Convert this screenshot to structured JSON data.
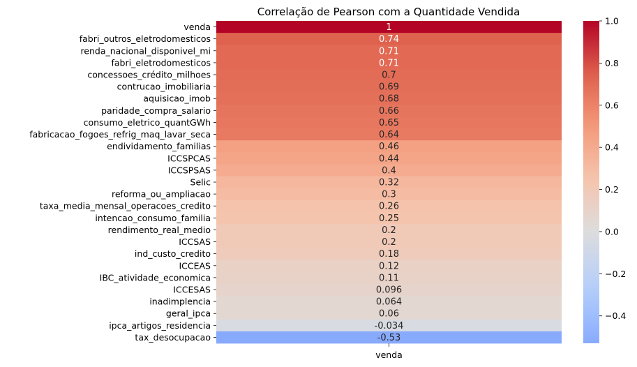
{
  "chart_data": {
    "type": "heatmap",
    "title": "Correlação de Pearson com a Quantidade Vendida",
    "x_categories": [
      "venda"
    ],
    "rows": [
      {
        "label": "venda",
        "value": 1,
        "text": "1"
      },
      {
        "label": "fabri_outros_eletrodomesticos",
        "value": 0.74,
        "text": "0.74"
      },
      {
        "label": "renda_nacional_disponivel_mi",
        "value": 0.71,
        "text": "0.71"
      },
      {
        "label": "fabri_eletrodomesticos",
        "value": 0.71,
        "text": "0.71"
      },
      {
        "label": "concessoes_crédito_milhoes",
        "value": 0.7,
        "text": "0.7"
      },
      {
        "label": "contrucao_imobiliaria",
        "value": 0.69,
        "text": "0.69"
      },
      {
        "label": "aquisicao_imob",
        "value": 0.68,
        "text": "0.68"
      },
      {
        "label": "paridade_compra_salario",
        "value": 0.66,
        "text": "0.66"
      },
      {
        "label": "consumo_eletrico_quantGWh",
        "value": 0.65,
        "text": "0.65"
      },
      {
        "label": "fabricacao_fogoes_refrig_maq_lavar_seca",
        "value": 0.64,
        "text": "0.64"
      },
      {
        "label": "endividamento_familias",
        "value": 0.46,
        "text": "0.46"
      },
      {
        "label": "ICCSPCAS",
        "value": 0.44,
        "text": "0.44"
      },
      {
        "label": "ICCSPSAS",
        "value": 0.4,
        "text": "0.4"
      },
      {
        "label": "Selic",
        "value": 0.32,
        "text": "0.32"
      },
      {
        "label": "reforma_ou_ampliacao",
        "value": 0.3,
        "text": "0.3"
      },
      {
        "label": "taxa_media_mensal_operacoes_credito",
        "value": 0.26,
        "text": "0.26"
      },
      {
        "label": "intencao_consumo_familia",
        "value": 0.25,
        "text": "0.25"
      },
      {
        "label": "rendimento_real_medio",
        "value": 0.2,
        "text": "0.2"
      },
      {
        "label": "ICCSAS",
        "value": 0.2,
        "text": "0.2"
      },
      {
        "label": "ind_custo_credito",
        "value": 0.18,
        "text": "0.18"
      },
      {
        "label": "ICCEAS",
        "value": 0.12,
        "text": "0.12"
      },
      {
        "label": "IBC_atividade_economica",
        "value": 0.11,
        "text": "0.11"
      },
      {
        "label": "ICCESAS",
        "value": 0.096,
        "text": "0.096"
      },
      {
        "label": "inadimplencia",
        "value": 0.064,
        "text": "0.064"
      },
      {
        "label": "geral_ipca",
        "value": 0.06,
        "text": "0.06"
      },
      {
        "label": "ipca_artigos_residencia",
        "value": -0.034,
        "text": "-0.034"
      },
      {
        "label": "tax_desocupacao",
        "value": -0.53,
        "text": "-0.53"
      }
    ],
    "colorbar": {
      "colormap": "coolwarm",
      "center": 0,
      "vmin": -0.53,
      "vmax": 1,
      "ticks": [
        {
          "value": 1.0,
          "label": "1.0"
        },
        {
          "value": 0.8,
          "label": "0.8"
        },
        {
          "value": 0.6,
          "label": "0.6"
        },
        {
          "value": 0.4,
          "label": "0.4"
        },
        {
          "value": 0.2,
          "label": "0.2"
        },
        {
          "value": 0.0,
          "label": "0.0"
        },
        {
          "value": -0.2,
          "label": "−0.2"
        },
        {
          "value": -0.4,
          "label": "−0.4"
        }
      ]
    }
  }
}
